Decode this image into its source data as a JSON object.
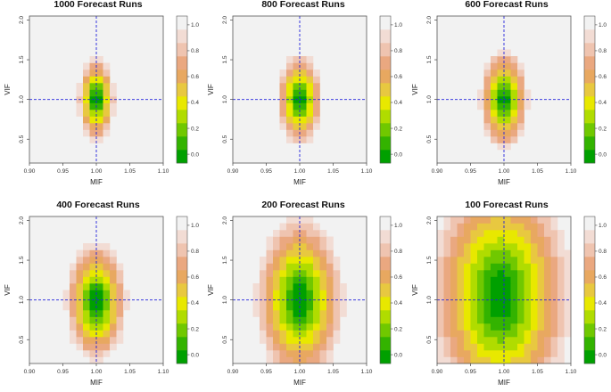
{
  "figure": {
    "description_none": ""
  },
  "chart_data": [
    {
      "type": "heatmap",
      "title": "1000 Forecast Runs",
      "xlabel": "MIF",
      "ylabel": "VIF",
      "xlim": [
        0.9,
        1.1
      ],
      "ylim": [
        0.2,
        2.05
      ],
      "center_x": 1.0,
      "center_y": 1.0,
      "spread_x": 0.011,
      "spread_y": 0.21,
      "x_ticks": [
        "0.90",
        "0.95",
        "1.00",
        "1.05",
        "1.10"
      ],
      "y_ticks": [
        "0.5",
        "1.0",
        "1.5",
        "2.0"
      ],
      "colorbar_ticks": [
        "0.0",
        "0.2",
        "0.4",
        "0.6",
        "0.8",
        "1.0"
      ],
      "reference_lines": {
        "x": 1.0,
        "y": 1.0
      }
    },
    {
      "type": "heatmap",
      "title": "800 Forecast Runs",
      "xlabel": "MIF",
      "ylabel": "VIF",
      "xlim": [
        0.9,
        1.1
      ],
      "ylim": [
        0.2,
        2.05
      ],
      "center_x": 1.0,
      "center_y": 1.0,
      "spread_x": 0.013,
      "spread_y": 0.23,
      "x_ticks": [
        "0.90",
        "0.95",
        "1.00",
        "1.05",
        "1.10"
      ],
      "y_ticks": [
        "0.5",
        "1.0",
        "1.5",
        "2.0"
      ],
      "colorbar_ticks": [
        "0.0",
        "0.2",
        "0.4",
        "0.6",
        "0.8",
        "1.0"
      ],
      "reference_lines": {
        "x": 1.0,
        "y": 1.0
      }
    },
    {
      "type": "heatmap",
      "title": "600 Forecast Runs",
      "xlabel": "MIF",
      "ylabel": "VIF",
      "xlim": [
        0.9,
        1.1
      ],
      "ylim": [
        0.2,
        2.05
      ],
      "center_x": 1.0,
      "center_y": 1.0,
      "spread_x": 0.014,
      "spread_y": 0.25,
      "x_ticks": [
        "0.90",
        "0.95",
        "1.00",
        "1.05",
        "1.10"
      ],
      "y_ticks": [
        "0.5",
        "1.0",
        "1.5",
        "2.0"
      ],
      "colorbar_ticks": [
        "0.0",
        "0.2",
        "0.4",
        "0.6",
        "0.8",
        "1.0"
      ],
      "reference_lines": {
        "x": 1.0,
        "y": 1.0
      }
    },
    {
      "type": "heatmap",
      "title": "400 Forecast Runs",
      "xlabel": "MIF",
      "ylabel": "VIF",
      "xlim": [
        0.9,
        1.1
      ],
      "ylim": [
        0.2,
        2.05
      ],
      "center_x": 1.0,
      "center_y": 0.98,
      "spread_x": 0.018,
      "spread_y": 0.3,
      "x_ticks": [
        "0.90",
        "0.95",
        "1.00",
        "1.05",
        "1.10"
      ],
      "y_ticks": [
        "0.5",
        "1.0",
        "1.5",
        "2.0"
      ],
      "colorbar_ticks": [
        "0.0",
        "0.2",
        "0.4",
        "0.6",
        "0.8",
        "1.0"
      ],
      "reference_lines": {
        "x": 1.0,
        "y": 1.0
      }
    },
    {
      "type": "heatmap",
      "title": "200 Forecast Runs",
      "xlabel": "MIF",
      "ylabel": "VIF",
      "xlim": [
        0.9,
        1.1
      ],
      "ylim": [
        0.2,
        2.05
      ],
      "center_x": 1.0,
      "center_y": 1.0,
      "spread_x": 0.026,
      "spread_y": 0.42,
      "x_ticks": [
        "0.90",
        "0.95",
        "1.00",
        "1.05",
        "1.10"
      ],
      "y_ticks": [
        "0.5",
        "1.0",
        "1.5",
        "2.0"
      ],
      "colorbar_ticks": [
        "0.0",
        "0.2",
        "0.4",
        "0.6",
        "0.8",
        "1.0"
      ],
      "reference_lines": {
        "x": 1.0,
        "y": 1.0
      }
    },
    {
      "type": "heatmap",
      "title": "100 Forecast Runs",
      "xlabel": "MIF",
      "ylabel": "VIF",
      "xlim": [
        0.9,
        1.1
      ],
      "ylim": [
        0.2,
        2.05
      ],
      "center_x": 0.995,
      "center_y": 1.05,
      "spread_x": 0.042,
      "spread_y": 0.62,
      "x_ticks": [
        "0.90",
        "0.95",
        "1.00",
        "1.05",
        "1.10"
      ],
      "y_ticks": [
        "0.5",
        "1.0",
        "1.5",
        "2.0"
      ],
      "colorbar_ticks": [
        "0.0",
        "0.2",
        "0.4",
        "0.6",
        "0.8",
        "1.0"
      ],
      "reference_lines": {
        "x": 1.0,
        "y": 1.0
      }
    }
  ],
  "colors": {
    "colormap": [
      "#00a000",
      "#33b300",
      "#70c800",
      "#b0dc00",
      "#e8e800",
      "#e8c840",
      "#e8a860",
      "#eaa880",
      "#efc4b0",
      "#f2dcd4",
      "#f2f2f2"
    ],
    "reference_line": "#2222dd",
    "frame": "#555555"
  }
}
